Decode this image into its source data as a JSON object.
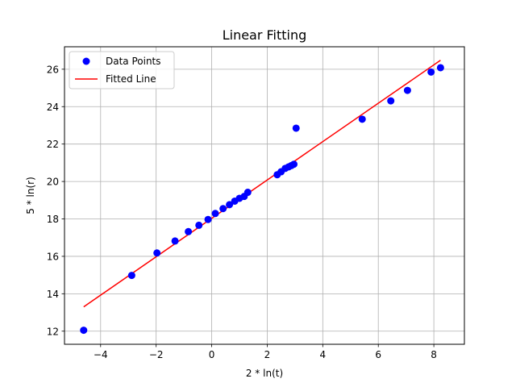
{
  "chart_data": {
    "type": "scatter",
    "title": "Linear Fitting",
    "xlabel": "2 * ln(t)",
    "ylabel": "5 * ln(r)",
    "xlim": [
      -5.3,
      9.1
    ],
    "ylim": [
      11.3,
      27.2
    ],
    "xticks": [
      -4,
      -2,
      0,
      2,
      4,
      6,
      8
    ],
    "yticks": [
      12,
      14,
      16,
      18,
      20,
      22,
      24,
      26
    ],
    "grid": true,
    "legend_position": "top-left",
    "series": [
      {
        "name": "Data Points",
        "kind": "scatter",
        "color": "#0000ff",
        "points": [
          [
            -4.61,
            12.05
          ],
          [
            -2.88,
            14.98
          ],
          [
            -1.97,
            16.18
          ],
          [
            -1.32,
            16.82
          ],
          [
            -0.84,
            17.32
          ],
          [
            -0.46,
            17.66
          ],
          [
            -0.13,
            17.97
          ],
          [
            0.13,
            18.29
          ],
          [
            0.41,
            18.55
          ],
          [
            0.64,
            18.76
          ],
          [
            0.83,
            18.95
          ],
          [
            1.0,
            19.1
          ],
          [
            1.17,
            19.2
          ],
          [
            1.3,
            19.42
          ],
          [
            2.36,
            20.36
          ],
          [
            2.5,
            20.52
          ],
          [
            2.65,
            20.7
          ],
          [
            2.77,
            20.78
          ],
          [
            2.87,
            20.85
          ],
          [
            2.96,
            20.92
          ],
          [
            3.04,
            22.85
          ],
          [
            5.42,
            23.33
          ],
          [
            6.45,
            24.31
          ],
          [
            7.05,
            24.87
          ],
          [
            7.9,
            25.85
          ],
          [
            8.24,
            26.08
          ]
        ]
      },
      {
        "name": "Fitted Line",
        "kind": "line",
        "color": "#ff0000",
        "points": [
          [
            -4.61,
            13.3
          ],
          [
            8.24,
            26.48
          ]
        ]
      }
    ]
  }
}
